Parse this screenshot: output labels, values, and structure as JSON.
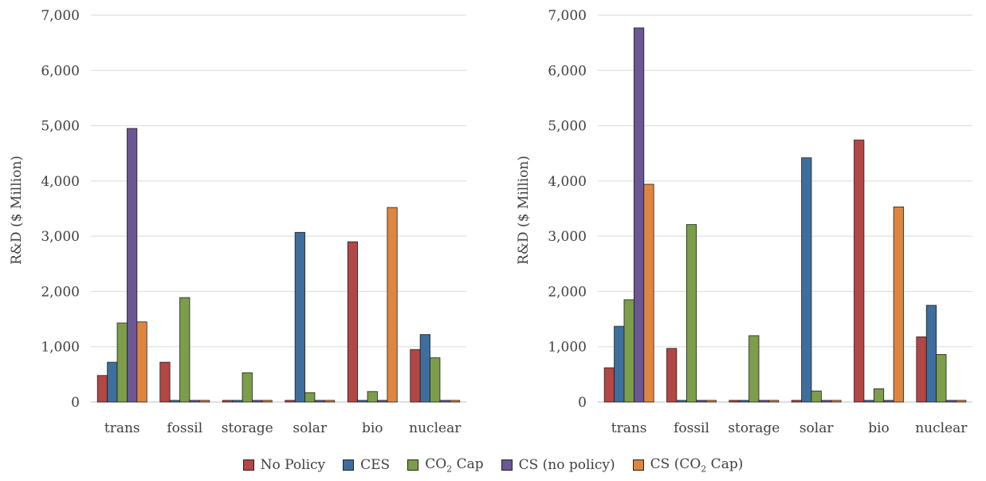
{
  "colors": {
    "No Policy": "#B24745",
    "CES": "#3E6E9C",
    "CO2 Cap": "#7C9E4A",
    "CS (no policy)": "#6A5793",
    "CS (CO2 Cap)": "#DE8640"
  },
  "legend": [
    {
      "pre": "No Policy",
      "sub": "",
      "post": ""
    },
    {
      "pre": "CES",
      "sub": "",
      "post": ""
    },
    {
      "pre": "CO",
      "sub": "2",
      "post": " Cap"
    },
    {
      "pre": "CS (no policy)",
      "sub": "",
      "post": ""
    },
    {
      "pre": "CS (CO",
      "sub": "2",
      "post": " Cap)"
    }
  ],
  "chart_data": [
    {
      "type": "bar",
      "ylabel": "R&D ($ Million)",
      "ylim": [
        0,
        7000
      ],
      "yticks": [
        "0",
        "1,000",
        "2,000",
        "3,000",
        "4,000",
        "5,000",
        "6,000",
        "7,000"
      ],
      "grid": true,
      "legend_position": "bottom",
      "categories": [
        "trans",
        "fossil",
        "storage",
        "solar",
        "bio",
        "nuclear"
      ],
      "series": [
        {
          "name": "No Policy",
          "values": [
            480,
            720,
            30,
            30,
            2900,
            950
          ]
        },
        {
          "name": "CES",
          "values": [
            720,
            30,
            30,
            3070,
            30,
            1220
          ]
        },
        {
          "name": "CO2 Cap",
          "values": [
            1430,
            1890,
            530,
            170,
            190,
            800
          ]
        },
        {
          "name": "CS (no policy)",
          "values": [
            4950,
            30,
            30,
            30,
            30,
            30
          ]
        },
        {
          "name": "CS (CO2 Cap)",
          "values": [
            1450,
            30,
            30,
            30,
            3520,
            30
          ]
        }
      ]
    },
    {
      "type": "bar",
      "ylabel": "R&D ($ Million)",
      "ylim": [
        0,
        7000
      ],
      "yticks": [
        "0",
        "1,000",
        "2,000",
        "3,000",
        "4,000",
        "5,000",
        "6,000",
        "7,000"
      ],
      "grid": true,
      "legend_position": "bottom",
      "categories": [
        "trans",
        "fossil",
        "storage",
        "solar",
        "bio",
        "nuclear"
      ],
      "series": [
        {
          "name": "No Policy",
          "values": [
            620,
            970,
            30,
            30,
            4740,
            1180
          ]
        },
        {
          "name": "CES",
          "values": [
            1370,
            30,
            30,
            4420,
            30,
            1750
          ]
        },
        {
          "name": "CO2 Cap",
          "values": [
            1850,
            3210,
            1200,
            200,
            240,
            860
          ]
        },
        {
          "name": "CS (no policy)",
          "values": [
            6770,
            30,
            30,
            30,
            30,
            30
          ]
        },
        {
          "name": "CS (CO2 Cap)",
          "values": [
            3940,
            30,
            30,
            30,
            3530,
            30
          ]
        }
      ]
    }
  ]
}
